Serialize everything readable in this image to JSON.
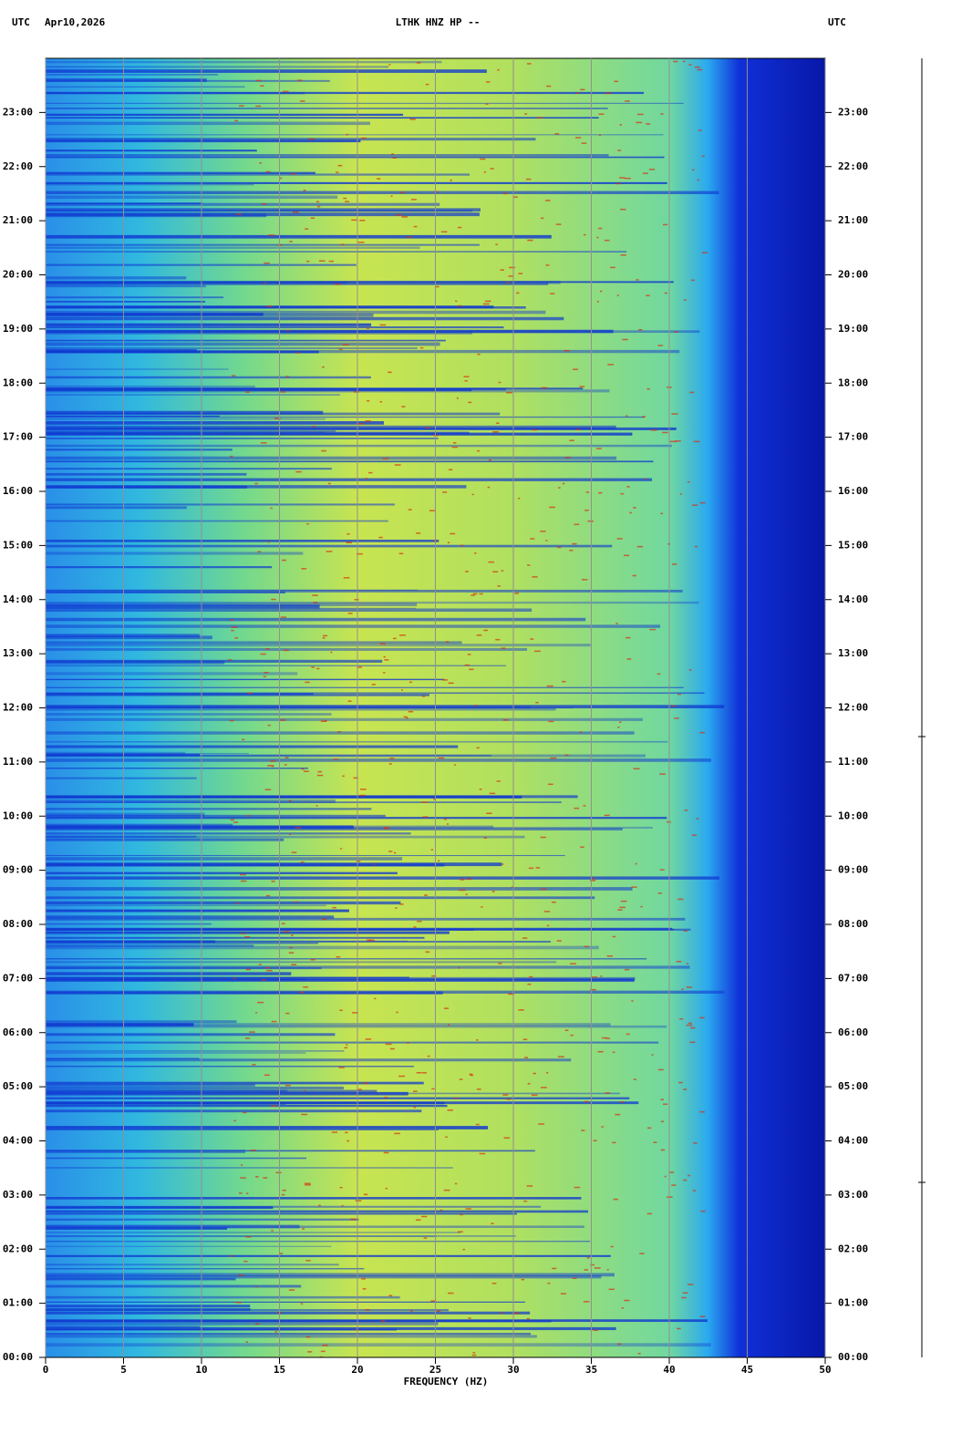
{
  "chart_data": {
    "type": "spectrogram",
    "timezone_left": "UTC",
    "date": "Apr10,2026",
    "title": "LTHK HNZ HP --",
    "timezone_right": "UTC",
    "x_label": "FREQUENCY (HZ)",
    "xlim": [
      0,
      50
    ],
    "xticks": [
      0,
      5,
      10,
      15,
      20,
      25,
      30,
      35,
      40,
      45,
      50
    ],
    "ylim": [
      0,
      24
    ],
    "yticks": [
      {
        "value": 0,
        "label": "00:00"
      },
      {
        "value": 1,
        "label": "01:00"
      },
      {
        "value": 2,
        "label": "02:00"
      },
      {
        "value": 3,
        "label": "03:00"
      },
      {
        "value": 4,
        "label": "04:00"
      },
      {
        "value": 5,
        "label": "05:00"
      },
      {
        "value": 6,
        "label": "06:00"
      },
      {
        "value": 7,
        "label": "07:00"
      },
      {
        "value": 8,
        "label": "08:00"
      },
      {
        "value": 9,
        "label": "09:00"
      },
      {
        "value": 10,
        "label": "10:00"
      },
      {
        "value": 11,
        "label": "11:00"
      },
      {
        "value": 12,
        "label": "12:00"
      },
      {
        "value": 13,
        "label": "13:00"
      },
      {
        "value": 14,
        "label": "14:00"
      },
      {
        "value": 15,
        "label": "15:00"
      },
      {
        "value": 16,
        "label": "16:00"
      },
      {
        "value": 17,
        "label": "17:00"
      },
      {
        "value": 18,
        "label": "18:00"
      },
      {
        "value": 19,
        "label": "19:00"
      },
      {
        "value": 20,
        "label": "20:00"
      },
      {
        "value": 21,
        "label": "21:00"
      },
      {
        "value": 22,
        "label": "22:00"
      },
      {
        "value": 23,
        "label": "23:00"
      }
    ],
    "grid": true
  }
}
